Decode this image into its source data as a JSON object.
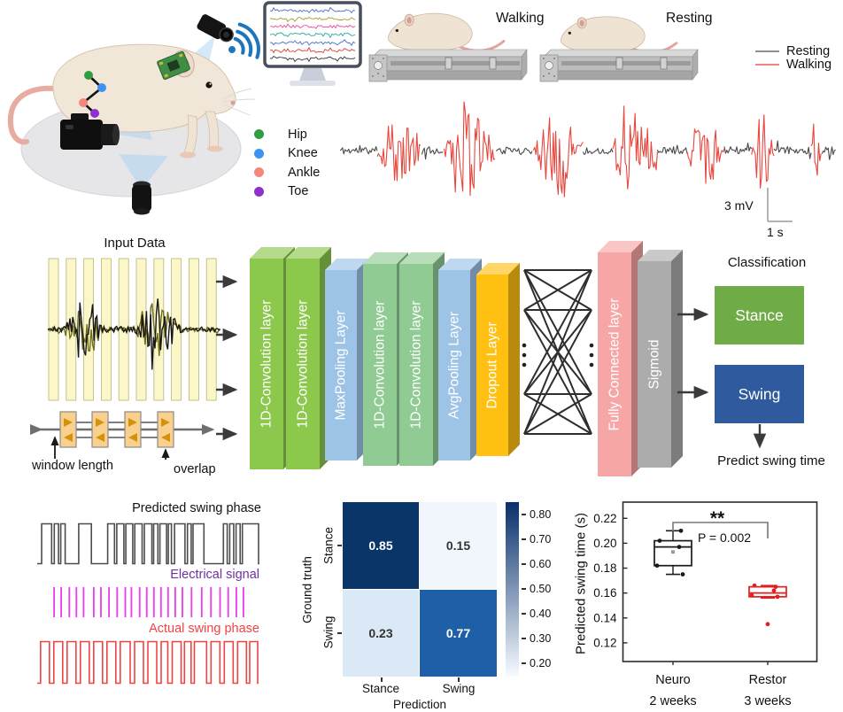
{
  "setup": {
    "joints": [
      {
        "label": "Hip",
        "color": "#2E9E40"
      },
      {
        "label": "Knee",
        "color": "#3E93F0"
      },
      {
        "label": "Ankle",
        "color": "#F4867C"
      },
      {
        "label": "Toe",
        "color": "#8E30CC"
      }
    ],
    "monitor_trace_colors": [
      "#4472C4",
      "#9E9E2E",
      "#E84B9E",
      "#2AA7A0",
      "#4472C4",
      "#E53935",
      "#30343F"
    ],
    "wifi_color": "#1D76BC"
  },
  "conditions": {
    "walking_label": "Walking",
    "resting_label": "Resting"
  },
  "emg": {
    "legend": [
      {
        "label": "Resting",
        "color": "#8F8F8F"
      },
      {
        "label": "Walking",
        "color": "#F2837B"
      }
    ],
    "resting_color": "#4A4A4A",
    "walking_color": "#E8453C",
    "scale_voltage": "3 mV",
    "scale_time": "1 s"
  },
  "network": {
    "input_title": "Input Data",
    "window_length_label": "window length",
    "overlap_label": "overlap",
    "layers": [
      {
        "label": "1D-Convolution layer",
        "color": "#8CC84C"
      },
      {
        "label": "1D-Convolution layer",
        "color": "#8CC84C"
      },
      {
        "label": "MaxPooling Layer",
        "color": "#9DC3E6"
      },
      {
        "label": "1D-Convolution layer",
        "color": "#90CB94"
      },
      {
        "label": "1D-Convolution layer",
        "color": "#90CB94"
      },
      {
        "label": "AvgPooling Layer",
        "color": "#9DC3E6"
      },
      {
        "label": "Dropout Layer",
        "color": "#FFC012"
      },
      {
        "label": "Fully Connected layer",
        "color": "#F7A6A6"
      },
      {
        "label": "Sigmoid",
        "color": "#ACACAC"
      }
    ],
    "classification_title": "Classification",
    "stance_label": "Stance",
    "stance_color": "#6FAC47",
    "swing_label": "Swing",
    "swing_color": "#2F5B9E",
    "predict_label": "Predict swing time"
  },
  "phases": {
    "predicted_label": "Predicted swing phase",
    "predicted_color": "#4D4D4D",
    "electrical_label": "Electrical signal",
    "electrical_label_color": "#7030A0",
    "electrical_color": "#EE3BEF",
    "actual_label": "Actual swing phase",
    "actual_color": "#EE4444",
    "predicted_pulses": [
      [
        2,
        6.5
      ],
      [
        7.7,
        9.6
      ],
      [
        10.6,
        12.6
      ],
      [
        18.7,
        24.4
      ],
      [
        31.7,
        34.8
      ],
      [
        35.8,
        39
      ],
      [
        39.9,
        43
      ],
      [
        43.9,
        47.2
      ],
      [
        48.2,
        51.6
      ],
      [
        52.4,
        54.3
      ],
      [
        55.2,
        58.2
      ],
      [
        59,
        60.4
      ],
      [
        61.8,
        66.5
      ],
      [
        67.6,
        69.3
      ],
      [
        70.1,
        75
      ],
      [
        83.8,
        85.5
      ],
      [
        86.6,
        88.4
      ],
      [
        89.5,
        91.3
      ],
      [
        92.3,
        99.6
      ]
    ],
    "actual_pulses": [
      [
        1.5,
        5.5
      ],
      [
        7.5,
        11.5
      ],
      [
        13.5,
        17.5
      ],
      [
        19.5,
        23.5
      ],
      [
        25.5,
        29.5
      ],
      [
        31.5,
        35.5
      ],
      [
        37.5,
        42
      ],
      [
        44,
        48
      ],
      [
        50,
        54
      ],
      [
        56,
        59
      ],
      [
        61,
        65
      ],
      [
        66.5,
        69.5
      ],
      [
        71,
        76.5
      ],
      [
        78.5,
        82.5
      ],
      [
        84.5,
        88.5
      ],
      [
        90.5,
        94.5
      ],
      [
        96,
        99.6
      ]
    ],
    "electrical_x": [
      3.5,
      7,
      11,
      14.5,
      18,
      23,
      26.5,
      30.5,
      34.5,
      38.5,
      41.5,
      45.5,
      49,
      52.5,
      56,
      59.5,
      63,
      66.5,
      71,
      76,
      80.5,
      85,
      89,
      93,
      96.5
    ]
  },
  "chart_data": [
    {
      "id": "confusion-matrix",
      "type": "heatmap",
      "xlabel": "Prediction",
      "ylabel": "Ground truth",
      "x_categories": [
        "Stance",
        "Swing"
      ],
      "y_categories": [
        "Stance",
        "Swing"
      ],
      "values": [
        [
          0.85,
          0.15
        ],
        [
          0.23,
          0.77
        ]
      ],
      "cell_colors": [
        [
          "#0A3569",
          "#F0F6FC"
        ],
        [
          "#DBE8F5",
          "#1E5FA8"
        ]
      ],
      "text_colors": [
        [
          "#FFFFFF",
          "#333333"
        ],
        [
          "#333333",
          "#FFFFFF"
        ]
      ],
      "colorbar_ticks": [
        "0.80",
        "0.70",
        "0.60",
        "0.50",
        "0.40",
        "0.30",
        "0.20"
      ],
      "colorbar_top_color": "#08306B",
      "colorbar_bottom_color": "#F7FBFF",
      "colormap": "Blues"
    },
    {
      "id": "swing-time-boxplot",
      "type": "box",
      "ylabel": "Predicted swing time (s)",
      "ylim": [
        0.105,
        0.233
      ],
      "yticks": [
        "0.22",
        "0.20",
        "0.18",
        "0.16",
        "0.14",
        "0.12"
      ],
      "categories": [
        "Neuro",
        "Restor"
      ],
      "category_subtitles": [
        "2 weeks",
        "3 weeks"
      ],
      "series": [
        {
          "name": "Neuro",
          "color": "#1A1A1A",
          "whisker_low": 0.175,
          "q1": 0.182,
          "median": 0.197,
          "q3": 0.202,
          "whisker_high": 0.21,
          "mean": 0.193,
          "points": [
            0.21,
            0.202,
            0.197,
            0.182,
            0.175
          ]
        },
        {
          "name": "Restor",
          "color": "#E02020",
          "whisker_low": 0.156,
          "q1": 0.157,
          "median": 0.16,
          "q3": 0.165,
          "whisker_high": 0.166,
          "points": [
            0.165,
            0.166,
            0.162,
            0.158,
            0.157
          ],
          "outliers": [
            0.135
          ]
        }
      ],
      "annotation": {
        "stars": "**",
        "p_text": "P = 0.002"
      }
    },
    {
      "id": "emg-trace",
      "type": "line",
      "description": "EMG trace alternating resting (gray) and walking (red) bursts",
      "series": [
        {
          "name": "Resting",
          "color": "#4A4A4A"
        },
        {
          "name": "Walking",
          "color": "#E8453C"
        }
      ],
      "scalebar": {
        "vertical": "3 mV",
        "horizontal": "1 s"
      },
      "segments": [
        {
          "type": "resting",
          "from": 0,
          "to": 0.075
        },
        {
          "type": "walking",
          "from": 0.075,
          "to": 0.165
        },
        {
          "type": "resting",
          "from": 0.165,
          "to": 0.21
        },
        {
          "type": "walking",
          "from": 0.21,
          "to": 0.315
        },
        {
          "type": "resting",
          "from": 0.315,
          "to": 0.39
        },
        {
          "type": "walking",
          "from": 0.39,
          "to": 0.49
        },
        {
          "type": "resting",
          "from": 0.49,
          "to": 0.55
        },
        {
          "type": "walking",
          "from": 0.55,
          "to": 0.64
        },
        {
          "type": "resting",
          "from": 0.64,
          "to": 0.7
        },
        {
          "type": "walking",
          "from": 0.7,
          "to": 0.775
        },
        {
          "type": "resting",
          "from": 0.775,
          "to": 0.83
        },
        {
          "type": "walking",
          "from": 0.83,
          "to": 0.875
        },
        {
          "type": "resting",
          "from": 0.875,
          "to": 0.95
        },
        {
          "type": "walking",
          "from": 0.95,
          "to": 0.972
        },
        {
          "type": "resting",
          "from": 0.972,
          "to": 1
        }
      ]
    }
  ]
}
